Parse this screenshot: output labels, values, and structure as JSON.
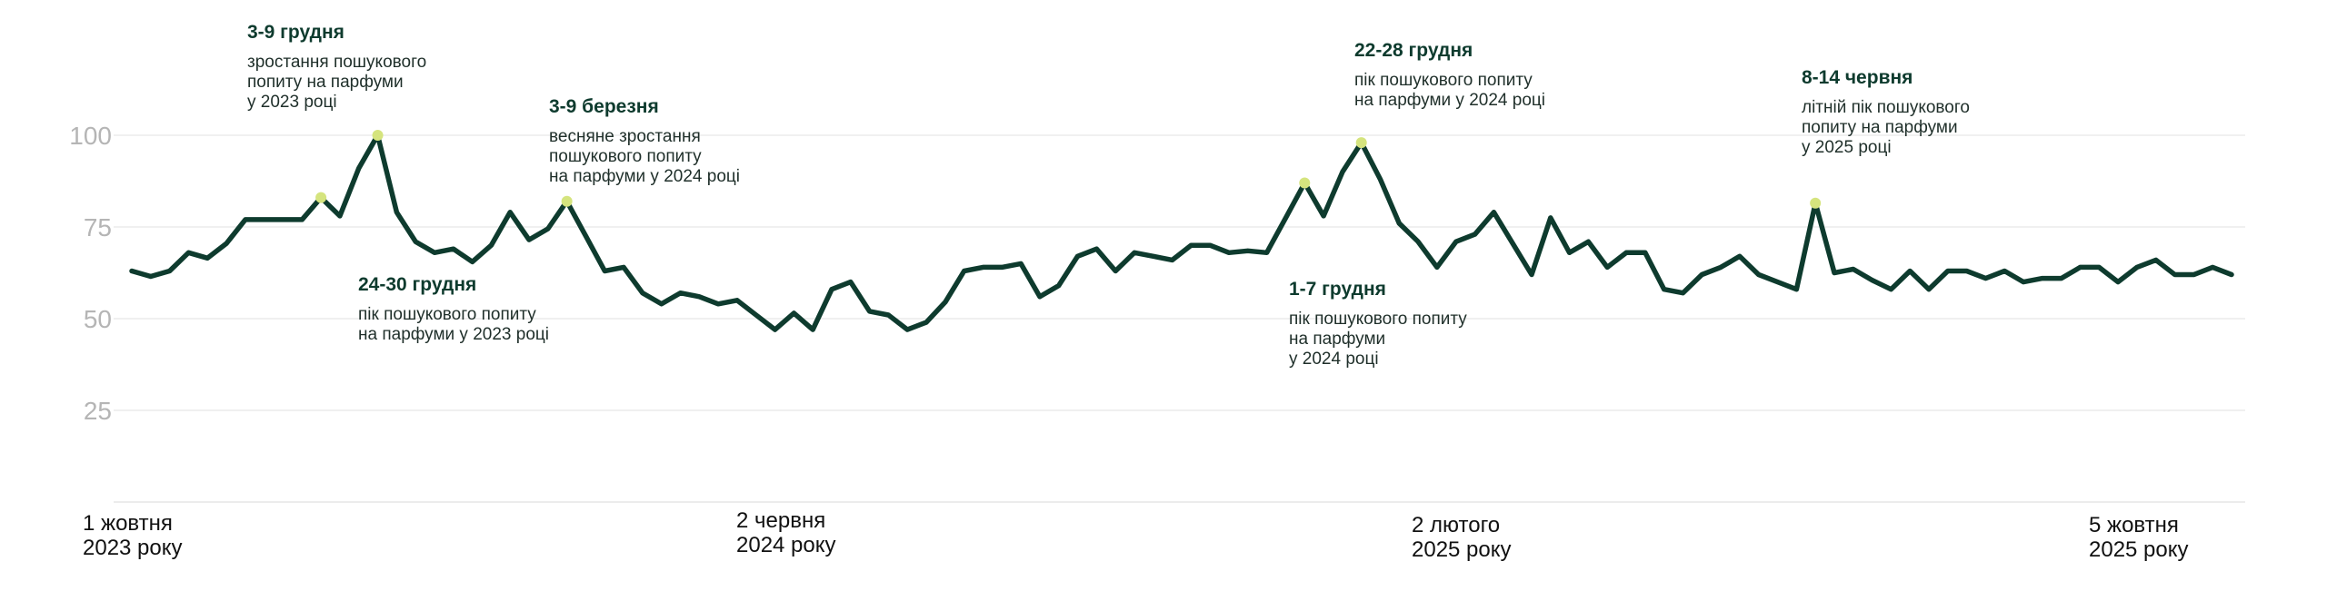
{
  "colors": {
    "line": "#0e3b2e",
    "peak_marker": "#d5e47e",
    "annotation_title": "#0e3b2e",
    "tick_text": "#b5b5b5",
    "grid": "#ececec"
  },
  "chart_data": {
    "type": "line",
    "title": "",
    "xlabel": "",
    "ylabel": "",
    "ylim": [
      0,
      100
    ],
    "grid": true,
    "legend": "none",
    "y_ticks": [
      "25",
      "50",
      "75",
      "100"
    ],
    "x_tick_labels": [
      {
        "line1": "1 жовтня",
        "line2": "2023 року"
      },
      {
        "line1": "2 червня",
        "line2": "2024 року"
      },
      {
        "line1": "2 лютого",
        "line2": "2025 року"
      },
      {
        "line1": "5 жовтня",
        "line2": "2025 року"
      }
    ],
    "series": [
      {
        "values": [
          63,
          61.5,
          63,
          68,
          66.5,
          70.5,
          77,
          77,
          77,
          77,
          83,
          78,
          91,
          100,
          79,
          71,
          68,
          69,
          65.5,
          70,
          79,
          71.5,
          74.5,
          82,
          72.5,
          63,
          64,
          57,
          54,
          57,
          56,
          54,
          55,
          51,
          47,
          51.5,
          47,
          58,
          60,
          52,
          51,
          47,
          49,
          54.5,
          63,
          64,
          64,
          65,
          56,
          59,
          67,
          69,
          63,
          68,
          67,
          66,
          70,
          70,
          68,
          68.5,
          68,
          77.5,
          87,
          78,
          90,
          98,
          88,
          76,
          71,
          64,
          71,
          73,
          79,
          70.5,
          62,
          77.5,
          68,
          71,
          64,
          68,
          68,
          58,
          57,
          62,
          64,
          67,
          62,
          60,
          58,
          81.5,
          62.5,
          63.5,
          60.5,
          58,
          63,
          58,
          63,
          63,
          61,
          63,
          60,
          61,
          61,
          64,
          64,
          60,
          64,
          66,
          62,
          62,
          64,
          62
        ]
      }
    ],
    "peaks": [
      {
        "index": 10,
        "value": 83
      },
      {
        "index": 13,
        "value": 100
      },
      {
        "index": 23,
        "value": 82
      },
      {
        "index": 62,
        "value": 87
      },
      {
        "index": 65,
        "value": 98
      },
      {
        "index": 89,
        "value": 81.5
      }
    ],
    "annotations": [
      {
        "title": "3-9 грудня",
        "lines": [
          "зростання пошукового",
          "попиту на парфуми",
          "у 2023 році"
        ]
      },
      {
        "title": "24-30 грудня",
        "lines": [
          "пік пошукового попиту",
          "на парфуми у 2023 році"
        ]
      },
      {
        "title": "3-9 березня",
        "lines": [
          "весняне зростання",
          "пошукового попиту",
          "на парфуми у 2024 році"
        ]
      },
      {
        "title": "1-7 грудня",
        "lines": [
          "пік пошукового попиту",
          "на парфуми",
          "у 2024 році"
        ]
      },
      {
        "title": "22-28 грудня",
        "lines": [
          "пік пошукового попиту",
          "на парфуми у 2024 році"
        ]
      },
      {
        "title": "8-14 червня",
        "lines": [
          "літній пік пошукового",
          "попиту на парфуми",
          "у 2025 році"
        ]
      }
    ]
  }
}
